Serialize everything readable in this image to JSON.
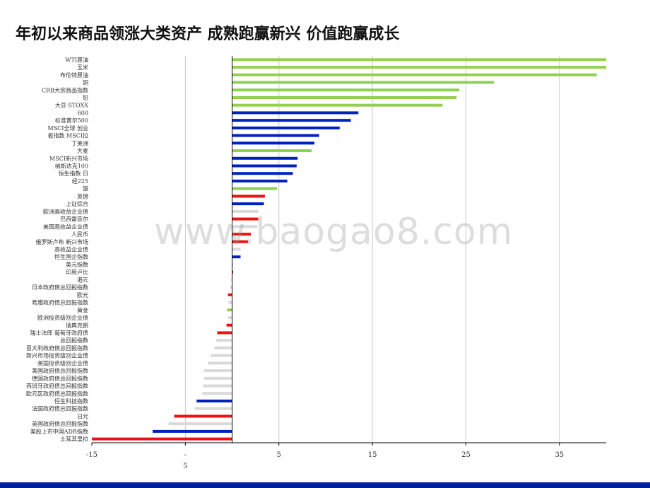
{
  "page": {
    "title": "年初以来商品领涨大类资产 成熟跑赢新兴 价值跑赢成长"
  },
  "watermark": "www.baogao8.com",
  "colors": {
    "green": "#92d050",
    "blue": "#0020c0",
    "red": "#ee1111",
    "gray": "#d9d9d9",
    "grid": "#c8c8c8",
    "axis": "#000000",
    "footer": "#0020a0"
  },
  "chart_data": {
    "type": "bar",
    "orientation": "horizontal",
    "title": "",
    "xlabel": "",
    "ylabel": "",
    "xlim": [
      -15,
      40
    ],
    "xticks": [
      -15,
      -5,
      5,
      15,
      25,
      35
    ],
    "xtick_labels": [
      "-15",
      "-\n5",
      "5",
      "15",
      "25",
      "35"
    ],
    "grid": "vertical",
    "categories": [
      "WTI原油",
      "玉米",
      "布伦特原油",
      "铜",
      "CRB大宗商品指数",
      "铝",
      "大豆 STOXX",
      "600",
      "标准普尔500",
      "MSCI全球 创业",
      "板指数 MSCI拉",
      "丁美洲",
      "大麦",
      "MSCI新兴市场",
      "纳斯达克100",
      "恒生指数 日",
      "经225",
      "银",
      "英镑",
      "上证综合",
      "欧洲高收益企业债",
      "巴西雷亚尔",
      "美国高收益企业债",
      "人民币",
      "俄罗斯卢布 新兴市场",
      "高收益企业债",
      "恒生国企指数",
      "美元指数",
      "印度卢比",
      "港元",
      "日本政府债总回报指数",
      "欧元",
      "希腊政府债总回报指数",
      "黄金",
      "欧洲投资级别企业债",
      "瑞典克朗",
      "瑞士法郎 葡萄牙政府债",
      "总回报指数",
      "意大利政府债总回报指数",
      "新兴市场投资级别企业债",
      "美国投资级别企业债",
      "美国政府债总回报指数",
      "德国政府债总回报指数",
      "西班牙政府债总回报指数",
      "欧元区政府债总回报指数",
      "恒生科技指数",
      "法国政府债总回报指数",
      "日元",
      "英国政府债总回报指数",
      "美股上市中国ADR指数",
      "土耳其里拉"
    ],
    "values": [
      40,
      40,
      39,
      28,
      24.3,
      24,
      22.5,
      13.5,
      12.7,
      11.5,
      9.3,
      8.8,
      8.5,
      7,
      6.9,
      6.5,
      5.9,
      4.8,
      3.5,
      3.4,
      2.8,
      2.8,
      2.7,
      2,
      1.7,
      0.9,
      0.9,
      0.1,
      0.1,
      -0.1,
      -0.2,
      -0.45,
      -0.4,
      -0.55,
      -0.4,
      -0.6,
      -1.6,
      -1.7,
      -1.9,
      -2.3,
      -2.6,
      -3,
      -3,
      -3.1,
      -3.2,
      -3.8,
      -4,
      -6.2,
      -6.8,
      -8.5,
      -15
    ],
    "bar_colors": [
      "green",
      "green",
      "green",
      "green",
      "green",
      "green",
      "green",
      "blue",
      "blue",
      "blue",
      "blue",
      "blue",
      "green",
      "blue",
      "blue",
      "blue",
      "blue",
      "green",
      "red",
      "blue",
      "gray",
      "red",
      "gray",
      "red",
      "red",
      "gray",
      "blue",
      "gray",
      "red",
      "gray",
      "gray",
      "red",
      "gray",
      "green",
      "gray",
      "red",
      "red",
      "gray",
      "gray",
      "gray",
      "gray",
      "gray",
      "gray",
      "gray",
      "gray",
      "blue",
      "gray",
      "red",
      "gray",
      "blue",
      "red"
    ]
  }
}
